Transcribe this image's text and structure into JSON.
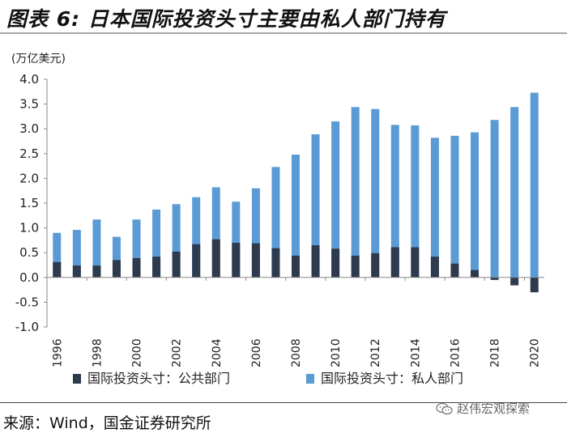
{
  "header": {
    "title": "图表 6:  日本国际投资头寸主要由私人部门持有"
  },
  "footer": {
    "source": "来源：Wind，国金证券研究所",
    "watermark": "赵伟宏观探索"
  },
  "colors": {
    "public": "#2e3a4e",
    "private": "#5b9bd5",
    "axis": "#888888"
  },
  "chart_data": {
    "type": "bar",
    "title": "日本国际投资头寸主要由私人部门持有",
    "unit_label": "(万亿美元)",
    "xlabel": "",
    "ylabel": "",
    "ylim": [
      -1.0,
      4.0
    ],
    "yticks": [
      "4.0",
      "3.5",
      "3.0",
      "2.5",
      "2.0",
      "1.5",
      "1.0",
      "0.5",
      "0.0",
      "-0.5",
      "-1.0"
    ],
    "ytick_values": [
      4.0,
      3.5,
      3.0,
      2.5,
      2.0,
      1.5,
      1.0,
      0.5,
      0.0,
      -0.5,
      -1.0
    ],
    "categories": [
      "1996",
      "1997",
      "1998",
      "1999",
      "2000",
      "2001",
      "2002",
      "2003",
      "2004",
      "2005",
      "2006",
      "2007",
      "2008",
      "2009",
      "2010",
      "2011",
      "2012",
      "2013",
      "2014",
      "2015",
      "2016",
      "2017",
      "2018",
      "2019",
      "2020"
    ],
    "xtick_labels": [
      "1996",
      "1998",
      "2000",
      "2002",
      "2004",
      "2006",
      "2008",
      "2010",
      "2012",
      "2014",
      "2016",
      "2018",
      "2020"
    ],
    "legend_position": "bottom",
    "series": [
      {
        "name": "国际投资头寸：公共部门",
        "values": [
          0.31,
          0.24,
          0.24,
          0.35,
          0.39,
          0.42,
          0.52,
          0.67,
          0.77,
          0.7,
          0.69,
          0.59,
          0.44,
          0.65,
          0.58,
          0.44,
          0.49,
          0.61,
          0.61,
          0.42,
          0.28,
          0.15,
          -0.05,
          -0.16,
          -0.3
        ]
      },
      {
        "name": "国际投资头寸：私人部门",
        "values": [
          0.9,
          0.96,
          1.17,
          0.82,
          1.17,
          1.37,
          1.48,
          1.62,
          1.82,
          1.53,
          1.8,
          2.23,
          2.48,
          2.89,
          3.15,
          3.44,
          3.4,
          3.08,
          3.07,
          2.82,
          2.86,
          2.93,
          3.18,
          3.44,
          3.73
        ]
      }
    ]
  }
}
